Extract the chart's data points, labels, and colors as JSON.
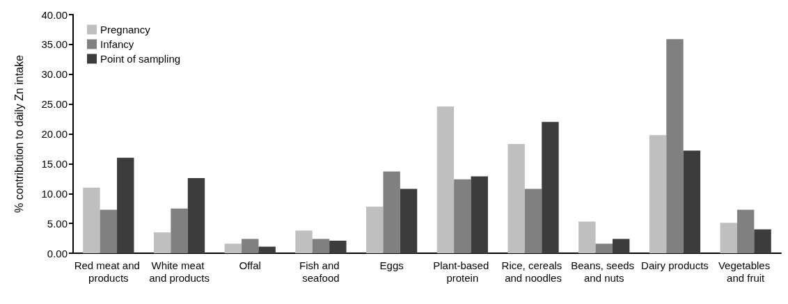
{
  "chart_data": {
    "type": "bar",
    "ylabel": "% contribution to daily Zn intake",
    "categories": [
      "Red meat and products",
      "White meat and products",
      "Offal",
      "Fish and seafood",
      "Eggs",
      "Plant-based protein",
      "Rice, cereals and noodles",
      "Beans, seeds and nuts",
      "Dairy products",
      "Vegetables and fruit"
    ],
    "series": [
      {
        "name": "Pregnancy",
        "color": "#bfbfbf",
        "values": [
          11.0,
          3.5,
          1.6,
          3.8,
          7.8,
          24.6,
          18.3,
          5.3,
          19.8,
          5.1
        ]
      },
      {
        "name": "Infancy",
        "color": "#808080",
        "values": [
          7.3,
          7.5,
          2.4,
          2.4,
          13.7,
          12.4,
          10.8,
          1.6,
          35.9,
          7.3
        ]
      },
      {
        "name": "Point of sampling",
        "color": "#3c3c3c",
        "values": [
          16.0,
          12.6,
          1.1,
          2.1,
          10.8,
          12.9,
          22.0,
          2.4,
          17.2,
          4.0
        ]
      }
    ],
    "ylim": [
      0,
      40
    ],
    "yticks": [
      {
        "value": 0,
        "label": "0.00"
      },
      {
        "value": 5,
        "label": "5.00"
      },
      {
        "value": 10,
        "label": "10.00"
      },
      {
        "value": 15,
        "label": "15.00"
      },
      {
        "value": 20,
        "label": "20.00"
      },
      {
        "value": 25,
        "label": "25.00"
      },
      {
        "value": 30,
        "label": "30.00"
      },
      {
        "value": 35,
        "label": "35.00"
      },
      {
        "value": 40,
        "label": "40.00"
      }
    ],
    "grid": false,
    "legend": "top left"
  }
}
